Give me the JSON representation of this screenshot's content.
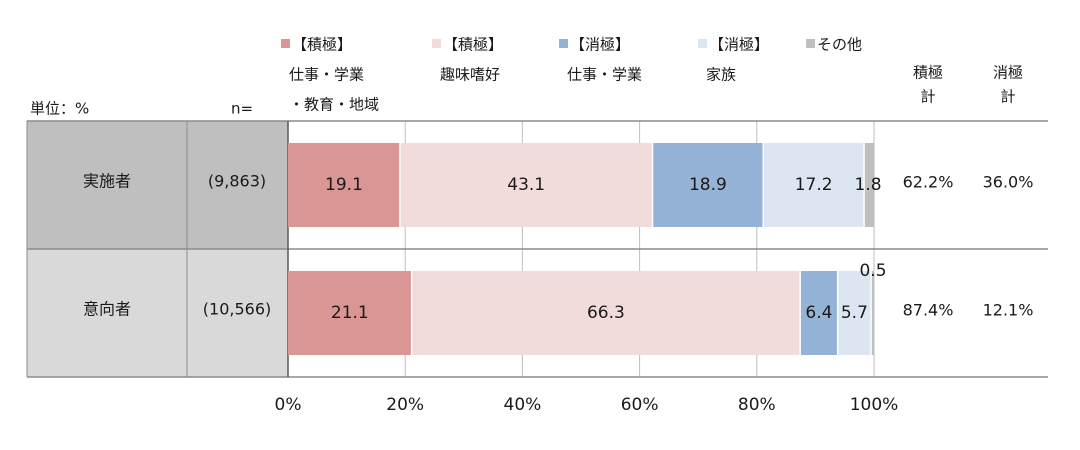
{
  "chart_data": {
    "type": "bar",
    "orientation": "horizontal",
    "stacked": true,
    "unit_label": "単位：%",
    "n_header": "n=",
    "categories": [
      "実施者",
      "意向者"
    ],
    "n_values": [
      "(9,863)",
      "(10,566)"
    ],
    "series": [
      {
        "name": "【積極】仕事・学業・教育・地域",
        "name_lines": [
          "【積極】",
          "仕事・学業",
          "・教育・地域"
        ],
        "color": "#D99694",
        "values": [
          19.1,
          21.1
        ],
        "labels": [
          "19.1",
          "21.1"
        ]
      },
      {
        "name": "【積極】趣味嗜好",
        "name_lines": [
          "【積極】",
          "趣味嗜好"
        ],
        "color": "#F2DCDB",
        "values": [
          43.1,
          66.3
        ],
        "labels": [
          "43.1",
          "66.3"
        ]
      },
      {
        "name": "【消極】仕事・学業",
        "name_lines": [
          "【消極】",
          "仕事・学業"
        ],
        "color": "#95B3D7",
        "values": [
          18.9,
          6.4
        ],
        "labels": [
          "18.9",
          "6.4"
        ]
      },
      {
        "name": "【消極】家族",
        "name_lines": [
          "【消極】",
          "家族"
        ],
        "color": "#DCE6F2",
        "values": [
          17.2,
          5.7
        ],
        "labels": [
          "17.2",
          "5.7"
        ]
      },
      {
        "name": "その他",
        "name_lines": [
          "その他"
        ],
        "color": "#BFBFBF",
        "values": [
          1.8,
          0.5
        ],
        "labels": [
          "1.8",
          "0.5"
        ]
      }
    ],
    "extra_columns": [
      {
        "header_lines": [
          "積極",
          "計"
        ],
        "values": [
          "62.2%",
          "87.4%"
        ]
      },
      {
        "header_lines": [
          "消極",
          "計"
        ],
        "values": [
          "36.0%",
          "12.1%"
        ]
      }
    ],
    "x_ticks": [
      "0%",
      "20%",
      "40%",
      "60%",
      "80%",
      "100%"
    ],
    "xlim": [
      0,
      100
    ],
    "grid": true,
    "legend_position": "top"
  }
}
